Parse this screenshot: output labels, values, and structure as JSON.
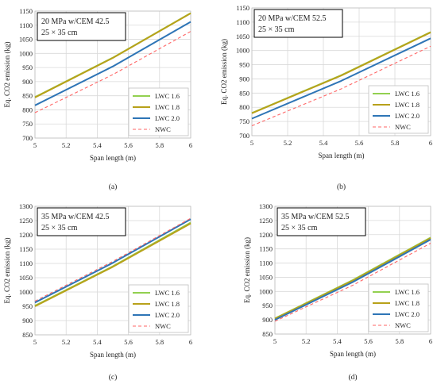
{
  "chart_data": [
    {
      "type": "line",
      "panel_label": "(a)",
      "annotation": [
        "20 MPa w/CEM 42.5",
        "25 × 35 cm"
      ],
      "xlabel": "Span length (m)",
      "ylabel": "Eq. CO2 emission (kg)",
      "xlim": [
        5,
        6
      ],
      "ylim": [
        700,
        1150
      ],
      "xticks": [
        5,
        5.2,
        5.4,
        5.6,
        5.8,
        6
      ],
      "yticks": [
        700,
        750,
        800,
        850,
        900,
        950,
        1000,
        1050,
        1100,
        1150
      ],
      "grid": true,
      "legend_position": "bottom-right",
      "series": [
        {
          "name": "LWC 1.6",
          "color": "#92d050",
          "dash": false,
          "x": [
            5,
            5.5,
            6
          ],
          "y": [
            845,
            985,
            1143
          ]
        },
        {
          "name": "LWC 1.8",
          "color": "#b8a11a",
          "dash": false,
          "x": [
            5,
            5.5,
            6
          ],
          "y": [
            844,
            984,
            1142
          ]
        },
        {
          "name": "LWC 2.0",
          "color": "#2e75b6",
          "dash": false,
          "x": [
            5,
            5.5,
            6
          ],
          "y": [
            816,
            954,
            1112
          ]
        },
        {
          "name": "NWC",
          "color": "#ff6666",
          "dash": true,
          "x": [
            5,
            5.5,
            6
          ],
          "y": [
            790,
            925,
            1078
          ]
        }
      ]
    },
    {
      "type": "line",
      "panel_label": "(b)",
      "annotation": [
        "20 MPa w/CEM 52.5",
        "25 × 35 cm"
      ],
      "xlabel": "Span length (m)",
      "ylabel": "Eq. CO2 emission (kg)",
      "xlim": [
        5,
        6
      ],
      "ylim": [
        700,
        1150
      ],
      "xticks": [
        5,
        5.2,
        5.4,
        5.6,
        5.8,
        6
      ],
      "yticks": [
        700,
        750,
        800,
        850,
        900,
        950,
        1000,
        1050,
        1100,
        1150
      ],
      "grid": true,
      "legend_position": "bottom-right",
      "series": [
        {
          "name": "LWC 1.6",
          "color": "#92d050",
          "dash": false,
          "x": [
            5,
            5.5,
            6
          ],
          "y": [
            780,
            913,
            1065
          ]
        },
        {
          "name": "LWC 1.8",
          "color": "#b8a11a",
          "dash": false,
          "x": [
            5,
            5.5,
            6
          ],
          "y": [
            779,
            912,
            1064
          ]
        },
        {
          "name": "LWC 2.0",
          "color": "#2e75b6",
          "dash": false,
          "x": [
            5,
            5.5,
            6
          ],
          "y": [
            760,
            893,
            1043
          ]
        },
        {
          "name": "NWC",
          "color": "#ff6666",
          "dash": true,
          "x": [
            5,
            5.5,
            6
          ],
          "y": [
            735,
            865,
            1015
          ]
        }
      ]
    },
    {
      "type": "line",
      "panel_label": "(c)",
      "annotation": [
        "35 MPa w/CEM 42.5",
        "25 × 35 cm"
      ],
      "xlabel": "Span length (m)",
      "ylabel": "Eq. CO2 emission (kg)",
      "xlim": [
        5,
        6
      ],
      "ylim": [
        850,
        1300
      ],
      "xticks": [
        5,
        5.2,
        5.4,
        5.6,
        5.8,
        6
      ],
      "yticks": [
        850,
        900,
        950,
        1000,
        1050,
        1100,
        1150,
        1200,
        1250,
        1300
      ],
      "grid": true,
      "legend_position": "bottom-right",
      "series": [
        {
          "name": "LWC 1.6",
          "color": "#92d050",
          "dash": false,
          "x": [
            5,
            5.5,
            6
          ],
          "y": [
            952,
            1090,
            1243
          ]
        },
        {
          "name": "LWC 1.8",
          "color": "#b8a11a",
          "dash": false,
          "x": [
            5,
            5.5,
            6
          ],
          "y": [
            950,
            1088,
            1240
          ]
        },
        {
          "name": "LWC 2.0",
          "color": "#2e75b6",
          "dash": false,
          "x": [
            5,
            5.5,
            6
          ],
          "y": [
            963,
            1102,
            1255
          ]
        },
        {
          "name": "NWC",
          "color": "#ff6666",
          "dash": true,
          "x": [
            5,
            5.5,
            6
          ],
          "y": [
            968,
            1107,
            1258
          ]
        }
      ]
    },
    {
      "type": "line",
      "panel_label": "(d)",
      "annotation": [
        "35 MPa w/CEM 52.5",
        "25 × 35 cm"
      ],
      "xlabel": "Span length (m)",
      "ylabel": "Eq. CO2 emission (kg)",
      "xlim": [
        5,
        6
      ],
      "ylim": [
        850,
        1300
      ],
      "xticks": [
        5,
        5.2,
        5.4,
        5.6,
        5.8,
        6
      ],
      "yticks": [
        850,
        900,
        950,
        1000,
        1050,
        1100,
        1150,
        1200,
        1250,
        1300
      ],
      "grid": true,
      "legend_position": "bottom-right",
      "series": [
        {
          "name": "LWC 1.6",
          "color": "#92d050",
          "dash": false,
          "x": [
            5,
            5.5,
            6
          ],
          "y": [
            905,
            1040,
            1190
          ]
        },
        {
          "name": "LWC 1.8",
          "color": "#b8a11a",
          "dash": false,
          "x": [
            5,
            5.5,
            6
          ],
          "y": [
            904,
            1038,
            1188
          ]
        },
        {
          "name": "LWC 2.0",
          "color": "#2e75b6",
          "dash": false,
          "x": [
            5,
            5.5,
            6
          ],
          "y": [
            900,
            1033,
            1183
          ]
        },
        {
          "name": "NWC",
          "color": "#ff6666",
          "dash": true,
          "x": [
            5,
            5.5,
            6
          ],
          "y": [
            895,
            1022,
            1170
          ]
        }
      ]
    }
  ]
}
